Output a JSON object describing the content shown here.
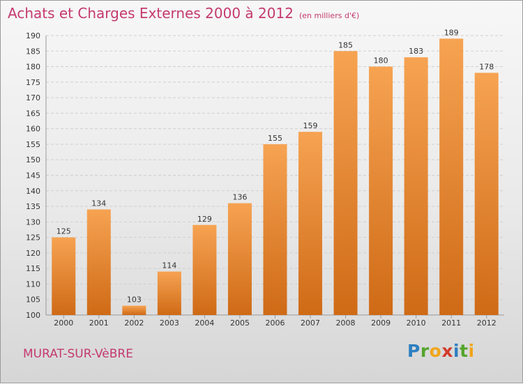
{
  "title": {
    "main": "Achats et Charges Externes 2000 à 2012",
    "unit": "(en milliers d'€)"
  },
  "commune": "MURAT-SUR-VèBRE",
  "logo": {
    "letters": [
      {
        "ch": "P",
        "color": "#2e7fc0"
      },
      {
        "ch": "r",
        "color": "#55a52d"
      },
      {
        "ch": "o",
        "color": "#f0a51a"
      },
      {
        "ch": "x",
        "color": "#d23b2c"
      },
      {
        "ch": "i",
        "color": "#2e7fc0"
      },
      {
        "ch": "t",
        "color": "#55a52d"
      },
      {
        "ch": "i",
        "color": "#f0a51a"
      }
    ]
  },
  "colors": {
    "bar_top": "#f6a352",
    "bar_bottom": "#cf6a16",
    "title": "#c43a6e"
  },
  "chart_data": {
    "type": "bar",
    "title": "Achats et Charges Externes 2000 à 2012",
    "subtitle": "(en milliers d'€)",
    "xlabel": "",
    "ylabel": "",
    "categories": [
      "2000",
      "2001",
      "2002",
      "2003",
      "2004",
      "2005",
      "2006",
      "2007",
      "2008",
      "2009",
      "2010",
      "2011",
      "2012"
    ],
    "values": [
      125,
      134,
      103,
      114,
      129,
      136,
      155,
      159,
      185,
      180,
      183,
      189,
      178
    ],
    "ylim": [
      100,
      190
    ],
    "yticks": [
      100,
      105,
      110,
      115,
      120,
      125,
      130,
      135,
      140,
      145,
      150,
      155,
      160,
      165,
      170,
      175,
      180,
      185,
      190
    ],
    "grid": true,
    "data_labels": true
  }
}
